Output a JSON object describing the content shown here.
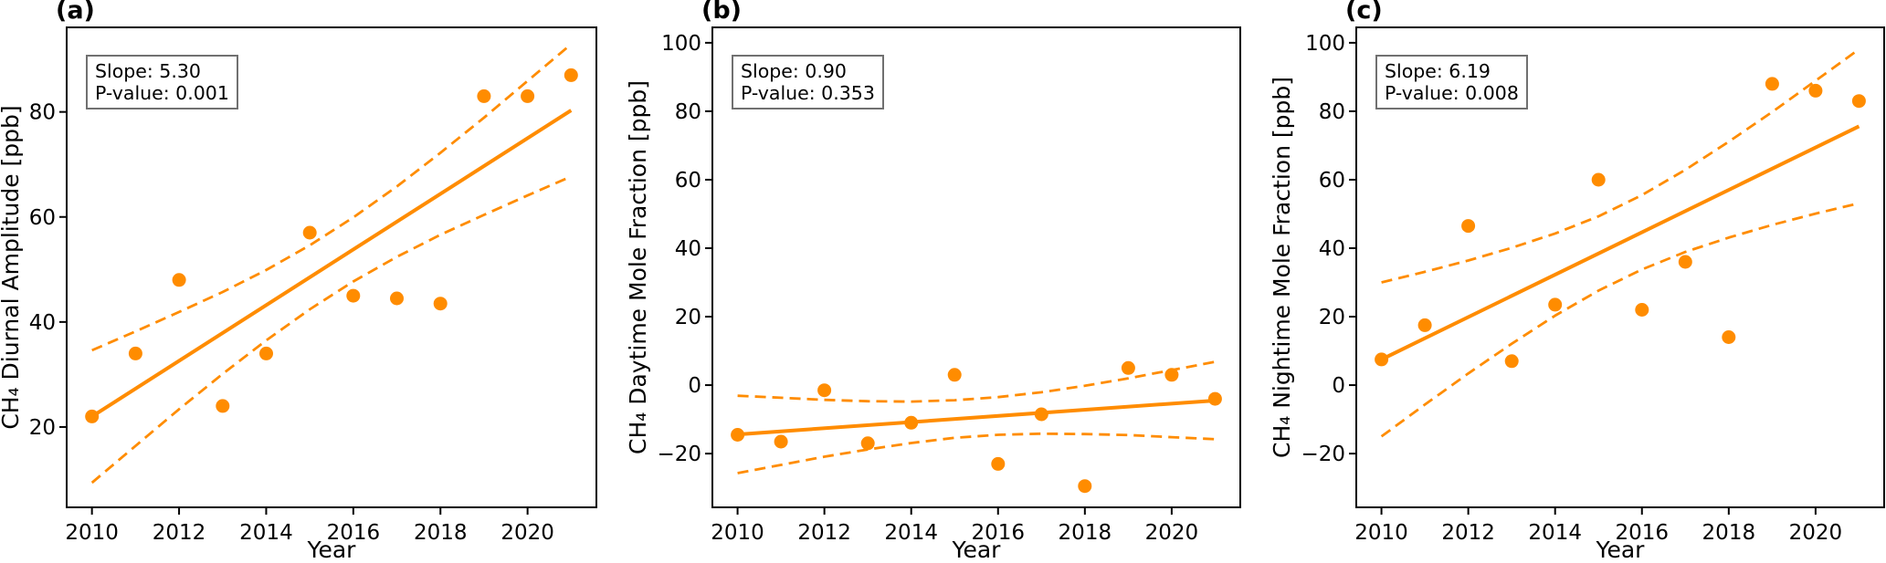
{
  "figure": {
    "background": "#ffffff",
    "accent_color": "#ff8c00",
    "text_color": "#000000",
    "annotation_border_color": "#707070"
  },
  "chart_data": [
    {
      "type": "scatter",
      "title": "(a)",
      "xlabel": "Year",
      "ylabel": "CH₄ Diurnal Amplitude [ppb]",
      "annotation": {
        "slope_label": "Slope: 5.30",
        "pvalue_label": "P-value: 0.001"
      },
      "slope": 5.3,
      "p_value": 0.001,
      "x": [
        2010,
        2011,
        2012,
        2013,
        2014,
        2015,
        2016,
        2017,
        2018,
        2019,
        2020,
        2021
      ],
      "y": [
        22,
        34,
        48,
        24,
        34,
        57,
        45,
        44.5,
        43.5,
        83,
        83,
        87
      ],
      "trend": {
        "x": [
          2010,
          2021
        ],
        "y": [
          22.0,
          80.3
        ]
      },
      "ci_upper": [
        34.6,
        38.2,
        41.9,
        45.7,
        49.9,
        54.6,
        59.9,
        65.8,
        72.2,
        78.9,
        85.9,
        92.9
      ],
      "ci_lower": [
        9.4,
        16.4,
        23.4,
        30.1,
        36.5,
        42.4,
        47.7,
        52.4,
        56.6,
        60.4,
        64.1,
        67.7
      ],
      "xlim": [
        2009.42,
        2021.58
      ],
      "ylim": [
        4.7,
        96.1
      ],
      "xticks": [
        2010,
        2012,
        2014,
        2016,
        2018,
        2020
      ],
      "yticks": [
        20,
        40,
        60,
        80
      ],
      "grid": false,
      "legend": null
    },
    {
      "type": "scatter",
      "title": "(b)",
      "xlabel": "Year",
      "ylabel": "CH₄ Daytime Mole Fraction [ppb]",
      "annotation": {
        "slope_label": "Slope: 0.90",
        "pvalue_label": "P-value: 0.353"
      },
      "slope": 0.9,
      "p_value": 0.353,
      "x": [
        2010,
        2011,
        2012,
        2013,
        2014,
        2015,
        2016,
        2017,
        2018,
        2019,
        2020,
        2021
      ],
      "y": [
        -14.5,
        -16.5,
        -1.5,
        -17,
        -11,
        3,
        -23,
        -8.5,
        -29.5,
        5,
        3,
        -4
      ],
      "trend": {
        "x": [
          2010,
          2021
        ],
        "y": [
          -14.4,
          -4.5
        ]
      },
      "ci_upper": [
        -3.1,
        -3.7,
        -4.3,
        -4.7,
        -4.8,
        -4.4,
        -3.5,
        -2.1,
        -0.2,
        2.0,
        4.4,
        6.8
      ],
      "ci_lower": [
        -25.7,
        -23.3,
        -20.9,
        -18.8,
        -16.9,
        -15.4,
        -14.5,
        -14.2,
        -14.3,
        -14.6,
        -15.2,
        -15.8
      ],
      "xlim": [
        2009.42,
        2021.58
      ],
      "ylim": [
        -35.7,
        104.5
      ],
      "xticks": [
        2010,
        2012,
        2014,
        2016,
        2018,
        2020
      ],
      "yticks": [
        -20,
        0,
        20,
        40,
        60,
        80,
        100
      ],
      "grid": false,
      "legend": null
    },
    {
      "type": "scatter",
      "title": "(c)",
      "xlabel": "Year",
      "ylabel": "CH₄ Nightime Mole Fraction [ppb]",
      "annotation": {
        "slope_label": "Slope: 6.19",
        "pvalue_label": "P-value: 0.008"
      },
      "slope": 6.19,
      "p_value": 0.008,
      "x": [
        2010,
        2011,
        2012,
        2013,
        2014,
        2015,
        2016,
        2017,
        2018,
        2019,
        2020,
        2021
      ],
      "y": [
        7.5,
        17.5,
        46.5,
        7,
        23.5,
        60,
        22,
        36,
        14,
        88,
        86,
        83
      ],
      "trend": {
        "x": [
          2010,
          2021
        ],
        "y": [
          7.5,
          75.6
        ]
      },
      "ci_upper": [
        30.0,
        33.1,
        36.4,
        40.1,
        44.3,
        49.3,
        55.5,
        62.9,
        71.1,
        79.8,
        88.9,
        98.1
      ],
      "ci_lower": [
        -15.0,
        -5.7,
        3.4,
        12.1,
        20.3,
        27.6,
        33.8,
        38.9,
        43.1,
        46.8,
        50.1,
        53.1
      ],
      "xlim": [
        2009.42,
        2021.58
      ],
      "ylim": [
        -35.7,
        104.5
      ],
      "xticks": [
        2010,
        2012,
        2014,
        2016,
        2018,
        2020
      ],
      "yticks": [
        -20,
        0,
        20,
        40,
        60,
        80,
        100
      ],
      "grid": false,
      "legend": null
    }
  ]
}
